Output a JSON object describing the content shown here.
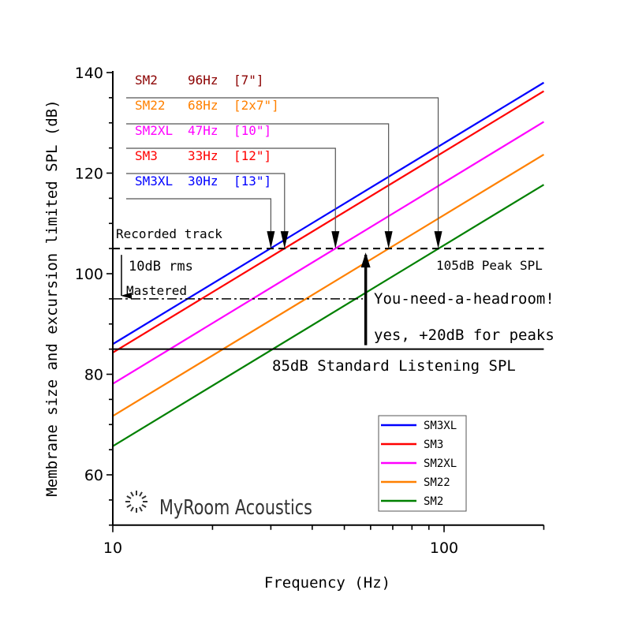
{
  "chart_data": {
    "type": "line",
    "title": "",
    "xlabel": "Frequency (Hz)",
    "ylabel": "Membrane size and excursion limited SPL (dB)",
    "xscale": "log",
    "xlim": [
      10,
      200
    ],
    "ylim": [
      50,
      140
    ],
    "x_ticks": [
      10,
      100
    ],
    "x_tick_labels": [
      "10",
      "100"
    ],
    "y_ticks": [
      60,
      80,
      100,
      120,
      140
    ],
    "y_tick_labels": [
      "60",
      "80",
      "100",
      "120",
      "140"
    ],
    "grid": false,
    "legend": {
      "placement": "bottom-right"
    },
    "series": [
      {
        "name": "SM3XL",
        "color": "#0000ff",
        "x": [
          10,
          200
        ],
        "y": [
          86.0,
          138.0
        ]
      },
      {
        "name": "SM3",
        "color": "#ff0000",
        "x": [
          10,
          200
        ],
        "y": [
          84.3,
          136.3
        ]
      },
      {
        "name": "SM2XL",
        "color": "#ff00ff",
        "x": [
          10,
          200
        ],
        "y": [
          78.1,
          130.2
        ]
      },
      {
        "name": "SM22",
        "color": "#ff8000",
        "x": [
          10,
          200
        ],
        "y": [
          71.7,
          123.7
        ]
      },
      {
        "name": "SM2",
        "color": "#008000",
        "x": [
          10,
          200
        ],
        "y": [
          65.7,
          117.7
        ]
      }
    ],
    "reference_lines": [
      {
        "label": "Recorded track",
        "value": 105,
        "style": "dashed",
        "right_label": "105dB Peak SPL"
      },
      {
        "label": "Mastered",
        "value": 95,
        "style": "dash-dot"
      },
      {
        "label": "85dB Standard Listening SPL",
        "value": 85,
        "style": "solid"
      }
    ],
    "annotations": {
      "rms": "10dB rms",
      "headroom": "You-need-a-headroom!",
      "peaks": "yes, +20dB for peaks",
      "headroom_arrow_x": 58,
      "callouts": [
        {
          "model": "SM2",
          "freq": "96Hz",
          "size": "[7\"]",
          "color": "#8b0000",
          "x": 96
        },
        {
          "model": "SM22",
          "freq": "68Hz",
          "size": "[2x7\"]",
          "color": "#ff8000",
          "x": 68
        },
        {
          "model": "SM2XL",
          "freq": "47Hz",
          "size": "[10\"]",
          "color": "#ff00ff",
          "x": 47
        },
        {
          "model": "SM3",
          "freq": "33Hz",
          "size": "[12\"]",
          "color": "#ff0000",
          "x": 33
        },
        {
          "model": "SM3XL",
          "freq": "30Hz",
          "size": "[13\"]",
          "color": "#0000ff",
          "x": 30
        }
      ]
    },
    "logo": "MyRoom Acoustics"
  }
}
